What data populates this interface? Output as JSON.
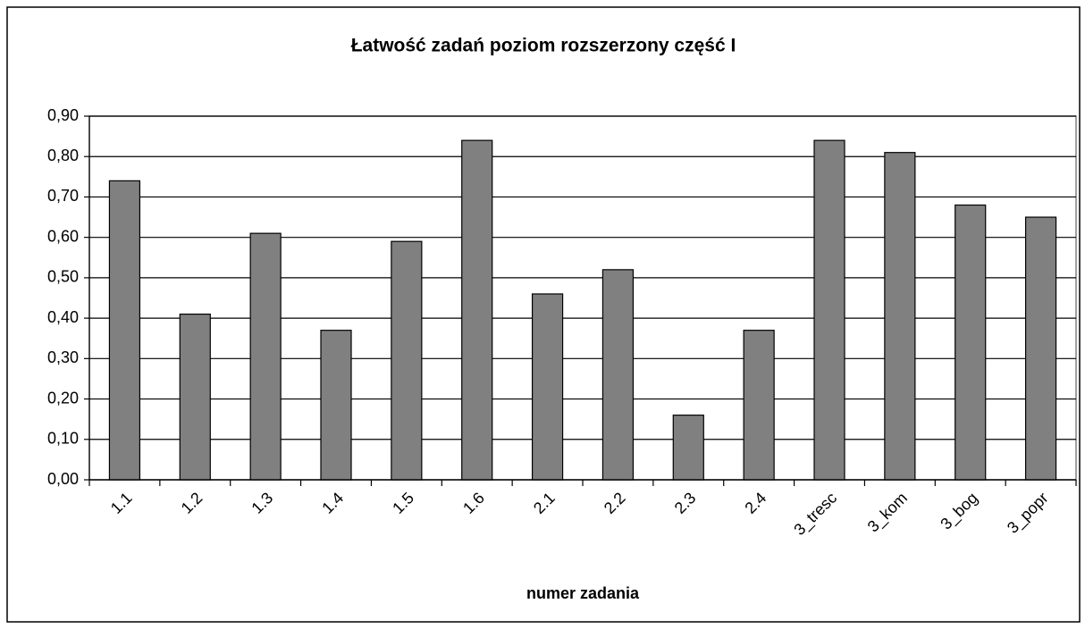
{
  "chart_data": {
    "type": "bar",
    "title": "Łatwość zadań poziom rozszerzony część I",
    "x_label": "numer zadania",
    "categories": [
      "1.1",
      "1.2",
      "1.3",
      "1.4",
      "1.5",
      "1.6",
      "2.1",
      "2.2",
      "2.3",
      "2.4",
      "3_tresc",
      "3_kom",
      "3_bog",
      "3_popr"
    ],
    "values": [
      0.74,
      0.41,
      0.61,
      0.37,
      0.59,
      0.84,
      0.46,
      0.52,
      0.16,
      0.37,
      0.84,
      0.81,
      0.68,
      0.65
    ],
    "color": "#808080",
    "ylim": [
      0,
      0.9
    ],
    "yticks": [
      {
        "value": 0,
        "label": "0,00"
      },
      {
        "value": 0.1,
        "label": "0,10"
      },
      {
        "value": 0.2,
        "label": "0,20"
      },
      {
        "value": 0.3,
        "label": "0,30"
      },
      {
        "value": 0.4,
        "label": "0,40"
      },
      {
        "value": 0.5,
        "label": "0,50"
      },
      {
        "value": 0.6,
        "label": "0,60"
      },
      {
        "value": 0.7,
        "label": "0,70"
      },
      {
        "value": 0.8,
        "label": "0,80"
      },
      {
        "value": 0.9,
        "label": "0,90"
      }
    ],
    "grid": true
  }
}
